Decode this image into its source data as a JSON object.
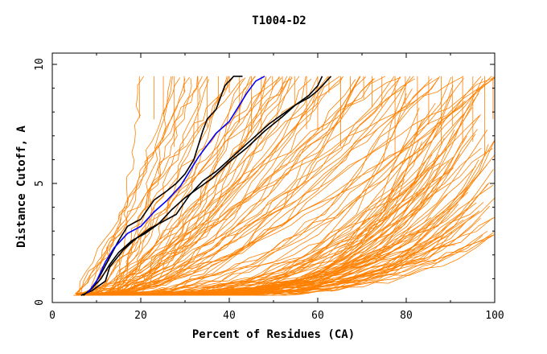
{
  "chart_data": {
    "type": "line",
    "title": "T1004-D2",
    "xlabel": "Percent of Residues (CA)",
    "ylabel": "Distance Cutoff, A",
    "xlim": [
      0,
      100
    ],
    "ylim": [
      0,
      10
    ],
    "x_ticks": [
      0,
      20,
      40,
      60,
      80,
      100
    ],
    "y_ticks": [
      0,
      5,
      10
    ],
    "grid": false,
    "colors": {
      "background_models": "#ff8000",
      "highlight_black": "#000000",
      "highlight_blue": "#0000ff"
    },
    "background_series_count": 150,
    "highlight_series": [
      {
        "name": "black-1",
        "color": "#000000",
        "x": [
          7,
          9,
          11,
          13,
          15,
          17,
          20,
          23,
          26,
          28,
          30,
          32,
          33,
          34,
          35,
          37,
          38,
          39,
          41,
          43
        ],
        "y": [
          0.3,
          0.6,
          1.2,
          1.9,
          2.6,
          3.2,
          3.5,
          4.3,
          4.7,
          5.0,
          5.4,
          6.0,
          6.6,
          7.2,
          7.7,
          8.1,
          8.6,
          9.1,
          9.5,
          9.5
        ]
      },
      {
        "name": "black-2",
        "color": "#000000",
        "x": [
          6.5,
          9,
          12,
          13,
          16,
          19,
          22,
          25,
          28,
          31,
          34,
          37,
          40,
          43,
          46,
          49,
          52,
          55,
          58,
          60,
          62,
          63
        ],
        "y": [
          0.3,
          0.5,
          0.9,
          1.5,
          2.2,
          2.7,
          3.1,
          3.4,
          3.7,
          4.5,
          5.1,
          5.5,
          6.0,
          6.5,
          7.0,
          7.5,
          7.9,
          8.3,
          8.6,
          8.9,
          9.3,
          9.5
        ]
      },
      {
        "name": "black-3",
        "color": "#000000",
        "x": [
          7,
          9,
          11,
          13,
          15,
          18,
          21,
          24,
          27,
          30,
          33,
          36,
          40,
          44,
          48,
          52,
          55,
          58,
          60,
          61
        ],
        "y": [
          0.3,
          0.6,
          1.0,
          1.6,
          2.1,
          2.6,
          2.9,
          3.3,
          3.9,
          4.4,
          4.8,
          5.2,
          5.9,
          6.5,
          7.2,
          7.8,
          8.3,
          8.7,
          9.1,
          9.5
        ]
      },
      {
        "name": "blue",
        "color": "#0000ff",
        "x": [
          8,
          10,
          12,
          14,
          17,
          20,
          23,
          26,
          29,
          31,
          33,
          35,
          37,
          40,
          42,
          44,
          46,
          48
        ],
        "y": [
          0.4,
          0.9,
          1.7,
          2.3,
          2.9,
          3.2,
          3.8,
          4.3,
          4.9,
          5.5,
          6.1,
          6.6,
          7.1,
          7.6,
          8.2,
          8.8,
          9.3,
          9.5
        ]
      }
    ]
  }
}
